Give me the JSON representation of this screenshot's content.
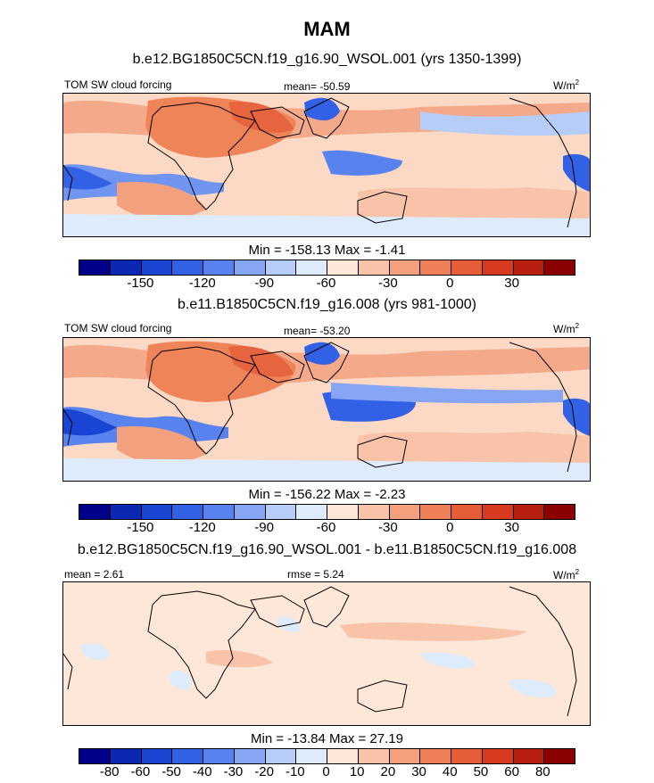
{
  "title": "MAM",
  "panels": [
    {
      "subtitle": "b.e12.BG1850C5CN.f19_g16.90_WSOL.001 (yrs 1350-1399)",
      "left_label": "TOM SW cloud forcing",
      "center_label": "mean= -50.59",
      "units": "W/m",
      "units_exp": "2",
      "minmax": "Min = -158.13 Max =  -1.41",
      "colorbar": {
        "colors": [
          "#00008b",
          "#0b28b3",
          "#1a45d4",
          "#3361e6",
          "#5883ef",
          "#86a6f5",
          "#b6cdf8",
          "#deebfb",
          "#fde7d8",
          "#f8c3a8",
          "#f2a07e",
          "#ee7f57",
          "#e45d36",
          "#d63a1f",
          "#b71f10",
          "#8b0000"
        ],
        "labels": [
          "-150",
          "-120",
          "-90",
          "-60",
          "-30",
          "0",
          "30"
        ]
      }
    },
    {
      "subtitle": "b.e11.B1850C5CN.f19_g16.008 (yrs 981-1000)",
      "left_label": "TOM SW cloud forcing",
      "center_label": "mean= -53.20",
      "units": "W/m",
      "units_exp": "2",
      "minmax": "Min = -156.22 Max =  -2.23",
      "colorbar": {
        "colors": [
          "#00008b",
          "#0b28b3",
          "#1a45d4",
          "#3361e6",
          "#5883ef",
          "#86a6f5",
          "#b6cdf8",
          "#deebfb",
          "#fde7d8",
          "#f8c3a8",
          "#f2a07e",
          "#ee7f57",
          "#e45d36",
          "#d63a1f",
          "#b71f10",
          "#8b0000"
        ],
        "labels": [
          "-150",
          "-120",
          "-90",
          "-60",
          "-30",
          "0",
          "30"
        ]
      }
    },
    {
      "subtitle": "b.e12.BG1850C5CN.f19_g16.90_WSOL.001 - b.e11.B1850C5CN.f19_g16.008",
      "left_label": "mean =   2.61",
      "center_label": "rmse =   5.24",
      "units": "W/m",
      "units_exp": "2",
      "minmax": "Min = -13.84 Max =  27.19",
      "colorbar": {
        "colors": [
          "#00008b",
          "#0b28b3",
          "#1a45d4",
          "#3361e6",
          "#5883ef",
          "#86a6f5",
          "#b6cdf8",
          "#deebfb",
          "#fde7d8",
          "#f8c3a8",
          "#f2a07e",
          "#ee7f57",
          "#e45d36",
          "#d63a1f",
          "#b71f10",
          "#8b0000"
        ],
        "labels": [
          "-80",
          "-60",
          "-50",
          "-40",
          "-30",
          "-20",
          "-10",
          "0",
          "10",
          "20",
          "30",
          "40",
          "50",
          "60",
          "80"
        ]
      }
    }
  ]
}
